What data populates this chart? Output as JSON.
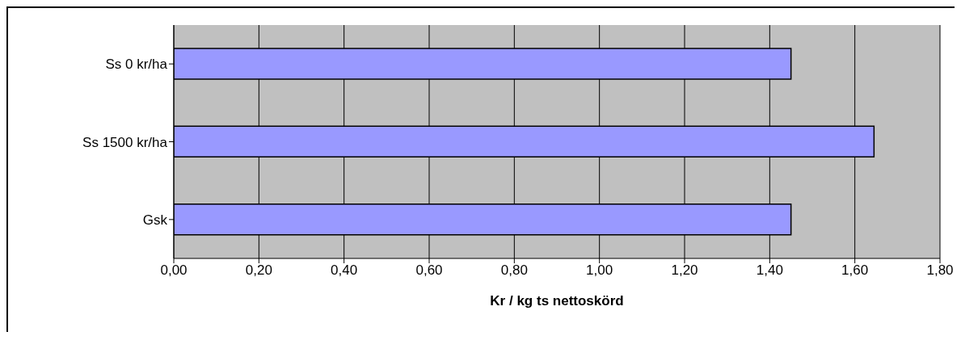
{
  "chart_data": {
    "type": "bar",
    "orientation": "horizontal",
    "xlabel": "Kr / kg ts nettoskörd",
    "categories": [
      "Ss 0 kr/ha",
      "Ss 1500 kr/ha",
      "Gsk"
    ],
    "values": [
      1.45,
      1.645,
      1.45
    ],
    "color": "#9999ff",
    "xlim": [
      0,
      1.8
    ],
    "xticks": [
      {
        "value": 0,
        "label": "0,00"
      },
      {
        "value": 0.2,
        "label": "0,20"
      },
      {
        "value": 0.4,
        "label": "0,40"
      },
      {
        "value": 0.6,
        "label": "0,60"
      },
      {
        "value": 0.8,
        "label": "0,80"
      },
      {
        "value": 1,
        "label": "1,00"
      },
      {
        "value": 1.2,
        "label": "1,20"
      },
      {
        "value": 1.4,
        "label": "1,40"
      },
      {
        "value": 1.6,
        "label": "1,60"
      },
      {
        "value": 1.8,
        "label": "1,80"
      }
    ],
    "grid": "x",
    "legend": false
  }
}
